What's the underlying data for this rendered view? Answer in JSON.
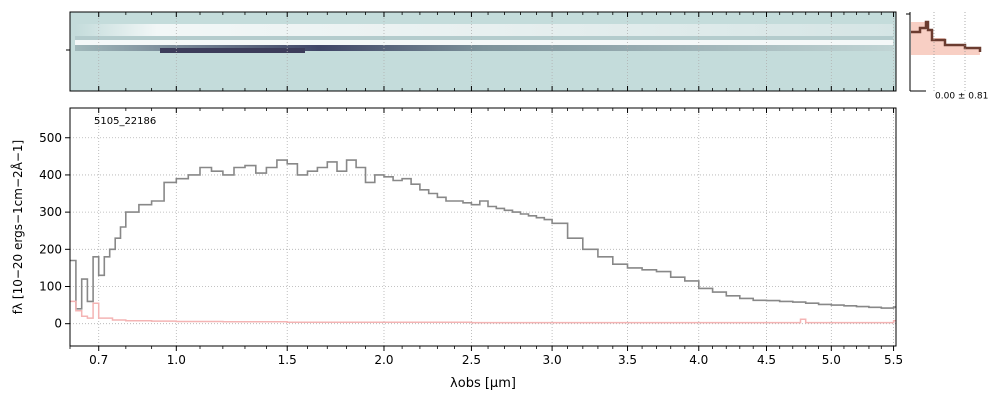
{
  "chart_data": [
    {
      "type": "heatmap",
      "panel": "2d-spectrum",
      "colormap": [
        "#c4dcdb",
        "#f2f7f7",
        "#8aa2a6",
        "#3c3c5a"
      ],
      "grid": true
    },
    {
      "type": "line",
      "panel": "spatial-profile",
      "annotation": "0.00 ± 0.81",
      "profile_color": "#6b3c30",
      "fill_color": "#f6c3b5"
    },
    {
      "type": "line",
      "panel": "1d-spectrum",
      "title": "5105_22186",
      "xlabel": "λobs [μm]",
      "ylabel": "fλ [10−20 ergs−1cm−2Å−1]",
      "x_scale": "power-law stretched (labels in μm)",
      "xlim": [
        0.6,
        5.52
      ],
      "ylim": [
        -60,
        580
      ],
      "xticks": [
        "0.7",
        "1.0",
        "1.5",
        "2.0",
        "2.5",
        "3.0",
        "3.5",
        "4.0",
        "4.5",
        "5.0",
        "5.5"
      ],
      "xtick_values": [
        0.7,
        1.0,
        1.5,
        2.0,
        2.5,
        3.0,
        3.5,
        4.0,
        4.5,
        5.0,
        5.5
      ],
      "yticks": [
        "0",
        "100",
        "200",
        "300",
        "400",
        "500"
      ],
      "ytick_values": [
        0,
        100,
        200,
        300,
        400,
        500
      ],
      "grid": true,
      "series": [
        {
          "role": "flux",
          "color": "#888888",
          "x": [
            0.6,
            0.62,
            0.64,
            0.66,
            0.68,
            0.7,
            0.72,
            0.74,
            0.76,
            0.78,
            0.8,
            0.85,
            0.9,
            0.95,
            1.0,
            1.05,
            1.1,
            1.15,
            1.2,
            1.25,
            1.3,
            1.35,
            1.4,
            1.45,
            1.5,
            1.55,
            1.6,
            1.65,
            1.7,
            1.75,
            1.8,
            1.85,
            1.9,
            1.95,
            2.0,
            2.05,
            2.1,
            2.15,
            2.2,
            2.25,
            2.3,
            2.35,
            2.4,
            2.45,
            2.5,
            2.55,
            2.6,
            2.65,
            2.7,
            2.75,
            2.8,
            2.85,
            2.9,
            2.95,
            3.0,
            3.1,
            3.2,
            3.3,
            3.4,
            3.5,
            3.6,
            3.7,
            3.8,
            3.9,
            4.0,
            4.1,
            4.2,
            4.3,
            4.4,
            4.5,
            4.6,
            4.7,
            4.8,
            4.9,
            5.0,
            5.1,
            5.2,
            5.3,
            5.4,
            5.5
          ],
          "values": [
            170,
            40,
            120,
            60,
            180,
            130,
            180,
            200,
            230,
            260,
            300,
            320,
            330,
            380,
            390,
            400,
            420,
            410,
            400,
            420,
            425,
            405,
            420,
            440,
            430,
            400,
            410,
            420,
            435,
            410,
            440,
            420,
            380,
            400,
            395,
            385,
            390,
            375,
            360,
            350,
            340,
            330,
            330,
            325,
            320,
            330,
            315,
            310,
            305,
            300,
            295,
            290,
            285,
            280,
            270,
            230,
            200,
            180,
            160,
            150,
            145,
            140,
            125,
            115,
            95,
            85,
            75,
            68,
            63,
            62,
            60,
            58,
            55,
            52,
            50,
            48,
            46,
            44,
            42,
            45
          ]
        },
        {
          "role": "uncertainty",
          "color": "#f4b4b4",
          "x": [
            0.6,
            0.62,
            0.64,
            0.66,
            0.68,
            0.7,
            0.75,
            0.8,
            0.9,
            1.0,
            1.2,
            1.5,
            2.0,
            2.5,
            3.0,
            3.5,
            4.0,
            4.5,
            4.75,
            4.76,
            4.8,
            5.0,
            5.5
          ],
          "values": [
            60,
            35,
            20,
            15,
            55,
            15,
            10,
            8,
            7,
            6,
            5,
            4,
            4,
            3,
            3,
            3,
            3,
            3,
            3,
            12,
            3,
            3,
            8
          ]
        }
      ]
    }
  ]
}
